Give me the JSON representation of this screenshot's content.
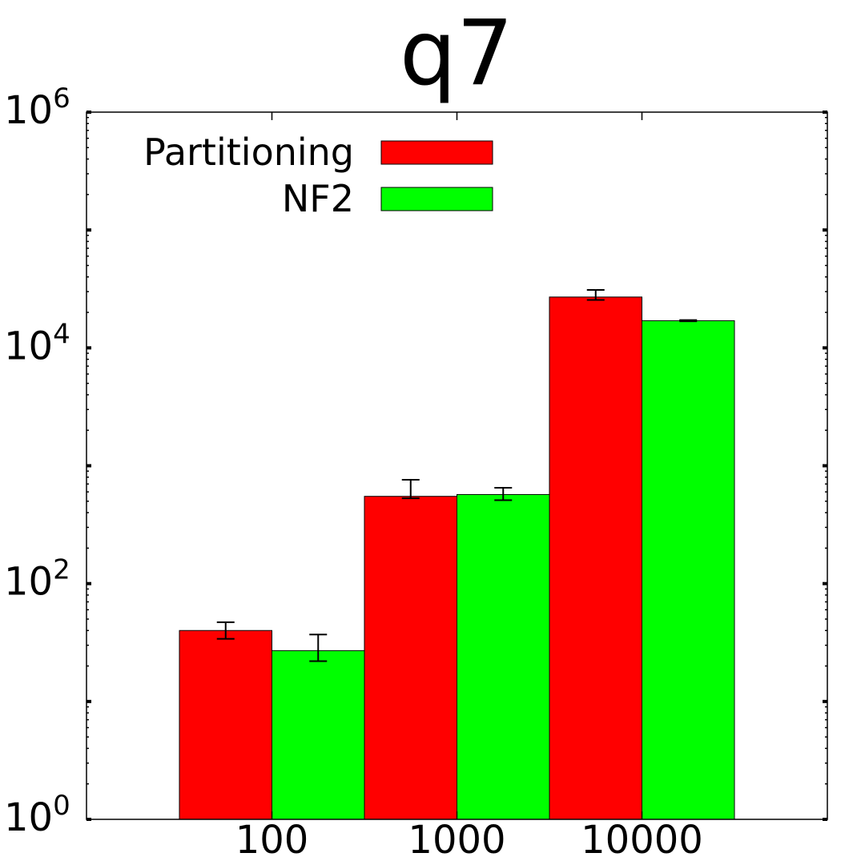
{
  "chart_data": {
    "type": "bar",
    "title": "q7",
    "xlabel": "",
    "ylabel": "",
    "y_scale": "log",
    "ylim": [
      1,
      1000000
    ],
    "y_ticks": [
      {
        "value": 1,
        "base": "10",
        "exp": "0"
      },
      {
        "value": 100,
        "base": "10",
        "exp": "2"
      },
      {
        "value": 10000,
        "base": "10",
        "exp": "4"
      },
      {
        "value": 1000000,
        "base": "10",
        "exp": "6"
      }
    ],
    "categories": [
      "100",
      "1000",
      "10000"
    ],
    "series": [
      {
        "name": "Partitioning",
        "color": "#ff0000",
        "values": [
          40,
          550,
          27000
        ],
        "error_low": [
          34,
          530,
          25500
        ],
        "error_high": [
          47,
          760,
          31000
        ]
      },
      {
        "name": "NF2",
        "color": "#00ff00",
        "values": [
          27,
          570,
          17000
        ],
        "error_low": [
          22,
          510,
          16800
        ],
        "error_high": [
          37,
          650,
          17200
        ]
      }
    ],
    "legend_position": "top-left",
    "grid": false
  }
}
